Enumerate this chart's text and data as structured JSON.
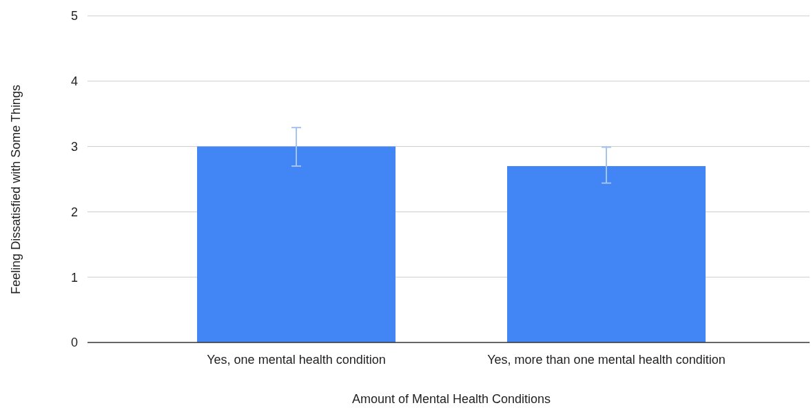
{
  "chart_data": {
    "type": "bar",
    "xlabel": "Amount of Mental Health Conditions",
    "ylabel": "Feeling Dissatisfied with Some Things",
    "categories": [
      "Yes, one mental health condition",
      "Yes, more than one mental health condition"
    ],
    "values": [
      3.0,
      2.7
    ],
    "color": "#4285f4",
    "errors": [
      [
        2.7,
        3.29
      ],
      [
        2.44,
        2.99
      ]
    ],
    "ylim": [
      0,
      5
    ],
    "yticks": [
      0,
      1,
      2,
      3,
      4,
      5
    ],
    "grid": "y"
  }
}
